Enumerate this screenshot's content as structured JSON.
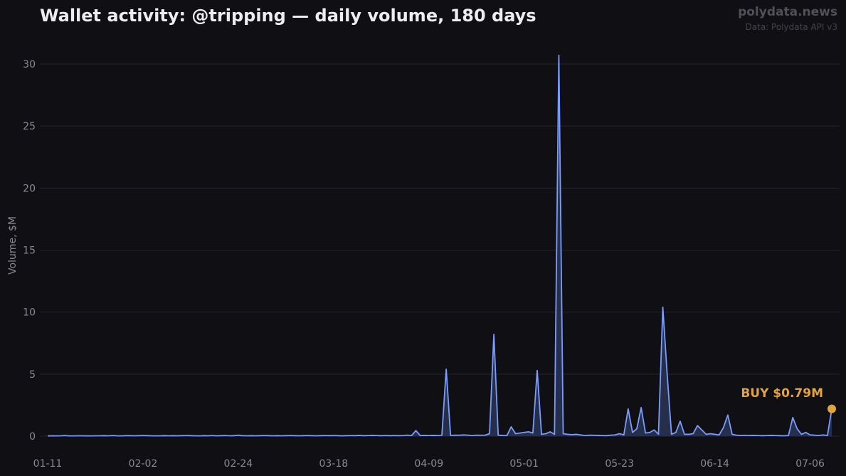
{
  "header": {
    "title": "Wallet activity: @tripping — daily volume, 180 days",
    "brand": "polydata.news",
    "source": "Data: Polydata API v3"
  },
  "colors": {
    "background": "#0f0f14",
    "grid": "#26262e",
    "line": "#7b9cff",
    "fill": "#2a3553",
    "annotation": "#e3a53b"
  },
  "chart_data": {
    "type": "area",
    "ylabel": "Volume, $M",
    "ylim": [
      0,
      31
    ],
    "y_ticks": [
      0,
      5,
      10,
      15,
      20,
      25,
      30
    ],
    "x_ticks": [
      {
        "day": 0,
        "label": "01-11"
      },
      {
        "day": 22,
        "label": "02-02"
      },
      {
        "day": 44,
        "label": "02-24"
      },
      {
        "day": 66,
        "label": "03-18"
      },
      {
        "day": 88,
        "label": "04-09"
      },
      {
        "day": 110,
        "label": "05-01"
      },
      {
        "day": 132,
        "label": "05-23"
      },
      {
        "day": 154,
        "label": "06-14"
      },
      {
        "day": 176,
        "label": "07-06"
      }
    ],
    "grid": "horizontal",
    "values": [
      0.02,
      0.03,
      0.02,
      0.03,
      0.05,
      0.02,
      0.02,
      0.03,
      0.03,
      0.02,
      0.02,
      0.03,
      0.03,
      0.04,
      0.03,
      0.05,
      0.03,
      0.02,
      0.04,
      0.04,
      0.03,
      0.04,
      0.05,
      0.04,
      0.03,
      0.02,
      0.03,
      0.04,
      0.03,
      0.04,
      0.03,
      0.04,
      0.05,
      0.04,
      0.03,
      0.02,
      0.04,
      0.03,
      0.05,
      0.03,
      0.04,
      0.05,
      0.03,
      0.04,
      0.08,
      0.04,
      0.03,
      0.04,
      0.03,
      0.04,
      0.05,
      0.04,
      0.03,
      0.04,
      0.03,
      0.04,
      0.05,
      0.04,
      0.03,
      0.04,
      0.05,
      0.04,
      0.03,
      0.04,
      0.05,
      0.04,
      0.05,
      0.04,
      0.03,
      0.04,
      0.05,
      0.04,
      0.06,
      0.04,
      0.05,
      0.06,
      0.05,
      0.04,
      0.05,
      0.04,
      0.05,
      0.04,
      0.05,
      0.08,
      0.05,
      0.45,
      0.05,
      0.06,
      0.05,
      0.06,
      0.05,
      0.07,
      5.4,
      0.06,
      0.08,
      0.07,
      0.1,
      0.08,
      0.05,
      0.08,
      0.07,
      0.08,
      0.2,
      8.2,
      0.08,
      0.06,
      0.05,
      0.75,
      0.2,
      0.25,
      0.3,
      0.35,
      0.25,
      5.3,
      0.15,
      0.2,
      0.35,
      0.15,
      30.7,
      0.2,
      0.15,
      0.12,
      0.15,
      0.1,
      0.05,
      0.08,
      0.07,
      0.06,
      0.05,
      0.04,
      0.08,
      0.1,
      0.2,
      0.1,
      2.2,
      0.3,
      0.6,
      2.3,
      0.25,
      0.3,
      0.5,
      0.15,
      10.4,
      5.0,
      0.15,
      0.3,
      1.2,
      0.15,
      0.15,
      0.2,
      0.85,
      0.5,
      0.15,
      0.2,
      0.15,
      0.1,
      0.7,
      1.7,
      0.15,
      0.08,
      0.05,
      0.07,
      0.05,
      0.06,
      0.05,
      0.04,
      0.05,
      0.06,
      0.05,
      0.04,
      0.03,
      0.05,
      1.5,
      0.6,
      0.15,
      0.3,
      0.1,
      0.08,
      0.05,
      0.1,
      0.05,
      2.2
    ],
    "annotation": {
      "label": "BUY $0.79M",
      "day": 181,
      "value": 2.2
    }
  }
}
